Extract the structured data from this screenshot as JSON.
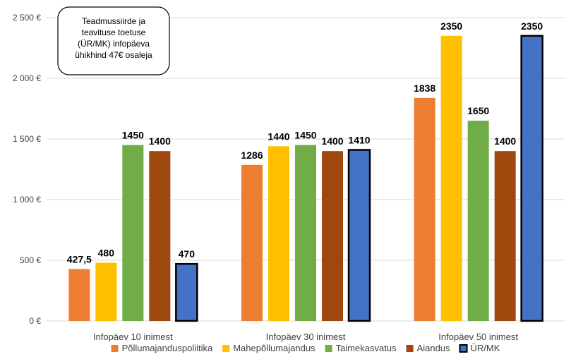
{
  "chart_data": {
    "type": "bar",
    "categories": [
      "Infopäev 10 inimest",
      "Infopäev 30 inimest",
      "Infopäev 50 inimest"
    ],
    "series": [
      {
        "name": "Põllumajanduspoliitika",
        "color": "#ED7D31",
        "values": [
          427.5,
          1286,
          1838
        ],
        "labels": [
          "427,5",
          "1286",
          "1838"
        ],
        "outlined": false
      },
      {
        "name": "Mahepõllumajandus",
        "color": "#FFC000",
        "values": [
          480,
          1440,
          2350
        ],
        "labels": [
          "480",
          "1440",
          "2350"
        ],
        "outlined": false
      },
      {
        "name": "Taimekasvatus",
        "color": "#70AD47",
        "values": [
          1450,
          1450,
          1650
        ],
        "labels": [
          "1450",
          "1450",
          "1650"
        ],
        "outlined": false
      },
      {
        "name": "Aiandus",
        "color": "#9E480E",
        "values": [
          1400,
          1400,
          1400
        ],
        "labels": [
          "1400",
          "1400",
          "1400"
        ],
        "outlined": false
      },
      {
        "name": "ÜR/MK",
        "color": "#4472C4",
        "values": [
          470,
          1410,
          2350
        ],
        "labels": [
          "470",
          "1410",
          "2350"
        ],
        "outlined": true
      }
    ],
    "y_ticks": [
      {
        "value": 0,
        "label": "0 €"
      },
      {
        "value": 500,
        "label": "500 €"
      },
      {
        "value": 1000,
        "label": "1 000 €"
      },
      {
        "value": 1500,
        "label": "1 500 €"
      },
      {
        "value": 2000,
        "label": "2 000 €"
      },
      {
        "value": 2500,
        "label": "2 500 €"
      }
    ],
    "ylim": [
      0,
      2500
    ],
    "grid": true,
    "legend_position": "bottom",
    "annotation": {
      "lines": [
        "Teadmussiirde ja",
        "teavituse toetuse",
        "(ÜR/MK) infopäeva",
        "ühikhind 47€ osaleja"
      ]
    }
  }
}
